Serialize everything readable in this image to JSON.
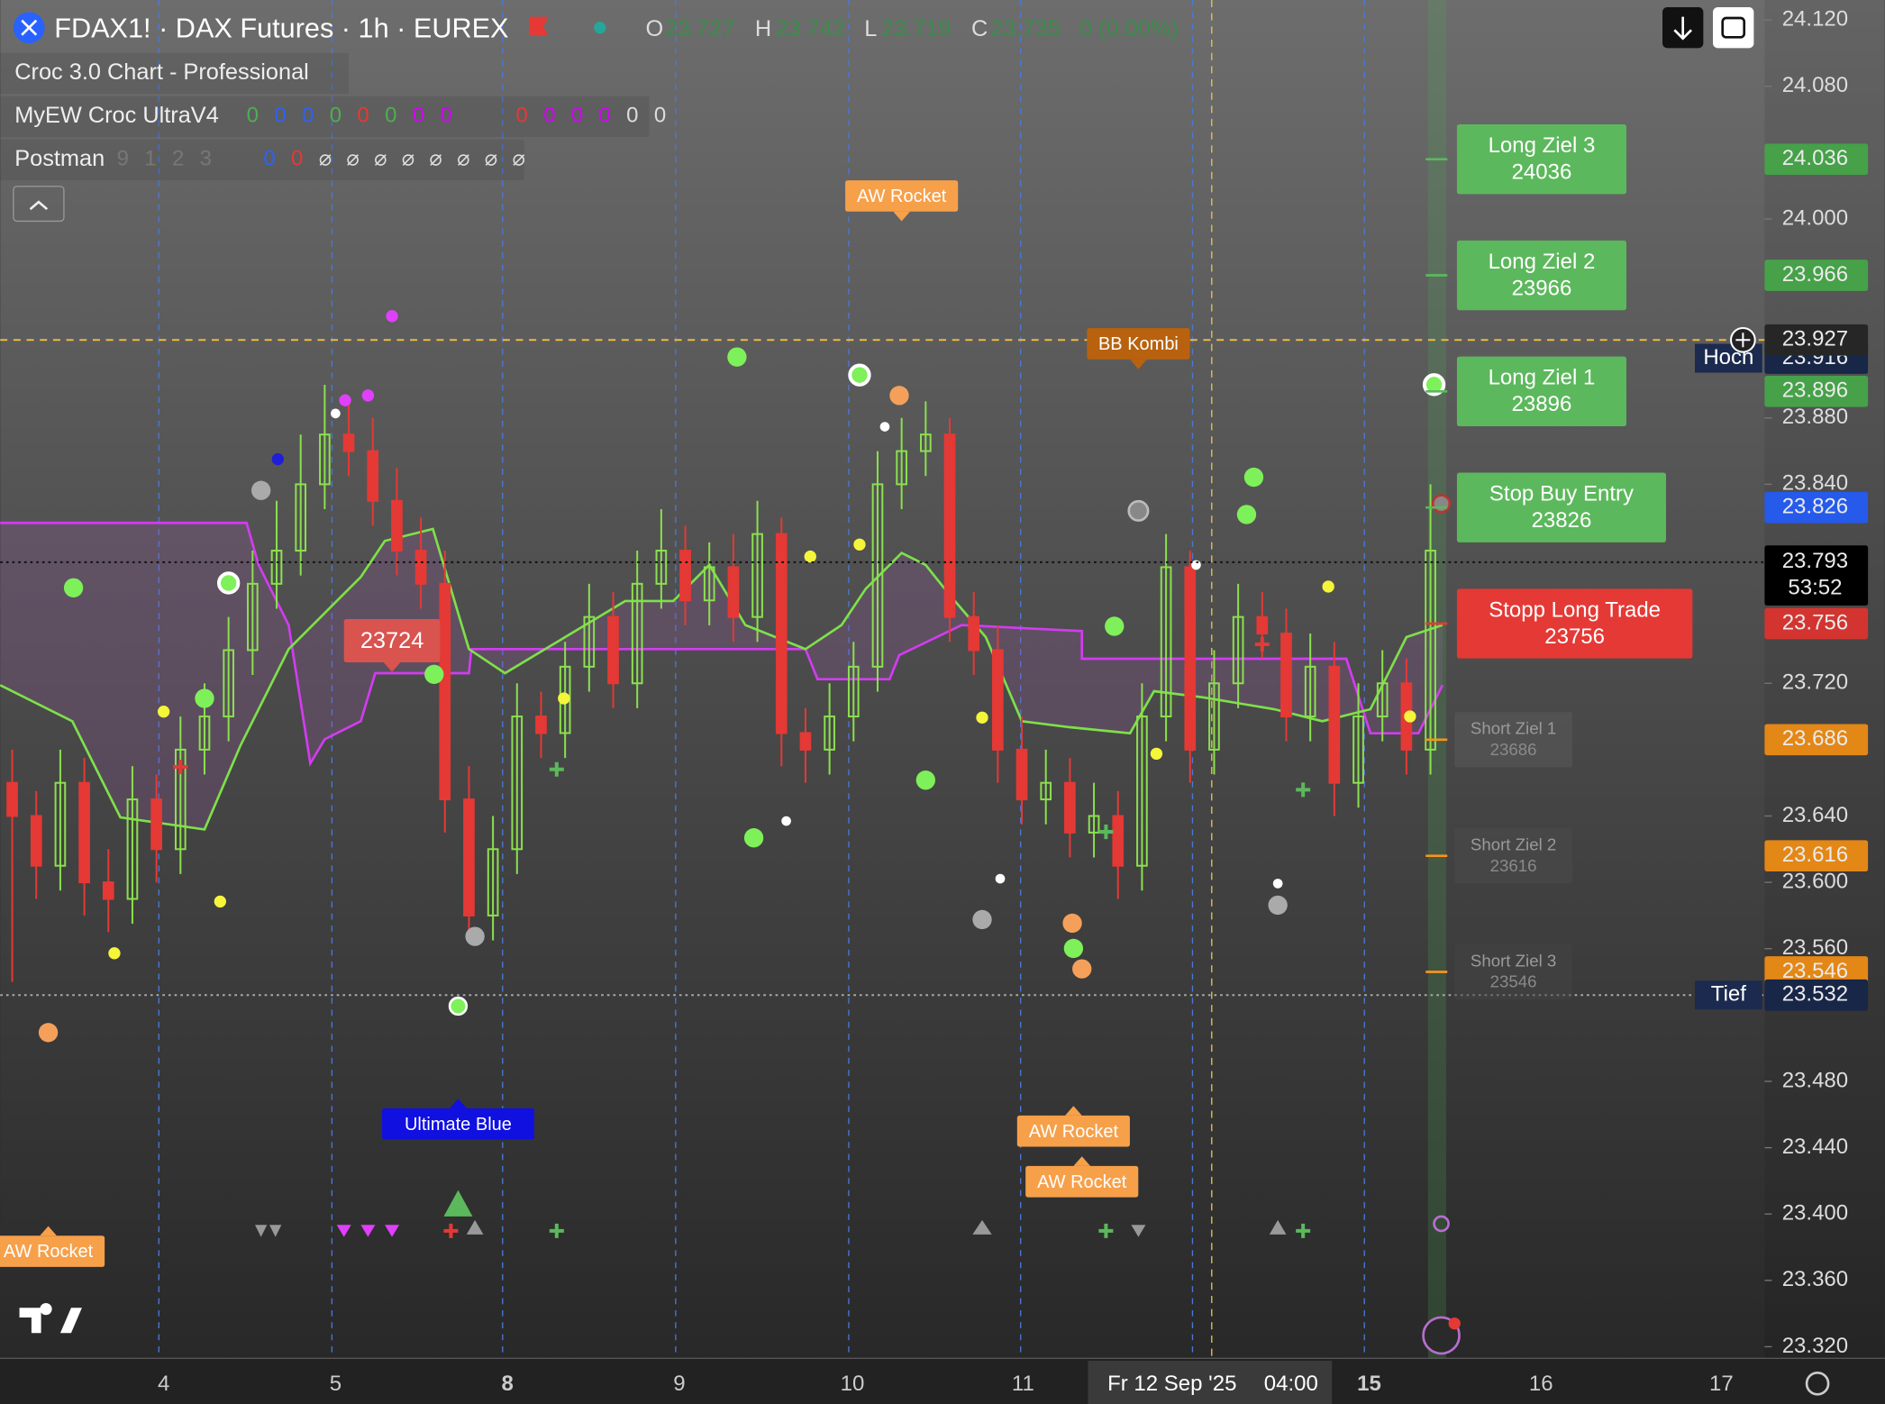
{
  "header": {
    "symbol": "FDAX1! · DAX Futures · 1h · EUREX",
    "o_label": "O",
    "o": "23.727",
    "h_label": "H",
    "h": "23.742",
    "l_label": "L",
    "l": "23.719",
    "c_label": "C",
    "c": "23.735",
    "change": "0 (0.00%)"
  },
  "indicators": [
    {
      "name": "Croc 3.0 Chart - Professional"
    },
    {
      "name": "MyEW Croc UltraV4",
      "values": [
        "0",
        "0",
        "0",
        "0",
        "0",
        "0",
        "0",
        "0",
        "0",
        "0",
        "0",
        "0",
        "0",
        "0"
      ],
      "colors": [
        "#4caf50",
        "#2962ff",
        "#2962ff",
        "#4caf50",
        "#e53935",
        "#4caf50",
        "#d500f9",
        "#d500f9",
        "#e53935",
        "#d500f9",
        "#d500f9",
        "#d500f9",
        "#dddddd",
        "#dddddd"
      ]
    },
    {
      "name": "Postman",
      "values": [
        "9",
        "1",
        "2",
        "3",
        "0",
        "0",
        "⌀",
        "⌀",
        "⌀",
        "⌀",
        "⌀",
        "⌀",
        "⌀",
        "⌀"
      ],
      "colors": [
        "#777777",
        "#777777",
        "#777777",
        "#777777",
        "#2962ff",
        "#e53935",
        "#dddddd",
        "#dddddd",
        "#dddddd",
        "#dddddd",
        "#dddddd",
        "#dddddd",
        "#dddddd",
        "#dddddd"
      ]
    }
  ],
  "chart_data": {
    "type": "candlestick",
    "up_color": "#8be04e",
    "down_color": "#e53935",
    "open": [
      23660,
      23640,
      23610,
      23660,
      23600,
      23590,
      23650,
      23620,
      23680,
      23700,
      23740,
      23780,
      23800,
      23840,
      23870,
      23860,
      23830,
      23800,
      23780,
      23650,
      23580,
      23620,
      23700,
      23690,
      23730,
      23760,
      23720,
      23780,
      23800,
      23770,
      23790,
      23760,
      23810,
      23690,
      23680,
      23700,
      23730,
      23840,
      23860,
      23870,
      23760,
      23740,
      23680,
      23650,
      23660,
      23630,
      23640,
      23610,
      23700,
      23790,
      23680,
      23720,
      23760,
      23750,
      23700,
      23730,
      23660,
      23700,
      23720,
      23680
    ],
    "high": [
      23680,
      23655,
      23680,
      23675,
      23620,
      23670,
      23665,
      23700,
      23720,
      23760,
      23800,
      23830,
      23870,
      23900,
      23890,
      23880,
      23850,
      23820,
      23800,
      23670,
      23640,
      23720,
      23715,
      23745,
      23780,
      23775,
      23800,
      23825,
      23815,
      23805,
      23810,
      23830,
      23820,
      23705,
      23720,
      23745,
      23860,
      23880,
      23890,
      23880,
      23775,
      23755,
      23700,
      23680,
      23675,
      23660,
      23655,
      23720,
      23810,
      23800,
      23740,
      23780,
      23775,
      23765,
      23750,
      23745,
      23720,
      23740,
      23735,
      23840
    ],
    "low": [
      23540,
      23590,
      23595,
      23580,
      23570,
      23575,
      23600,
      23605,
      23665,
      23685,
      23725,
      23765,
      23785,
      23825,
      23845,
      23815,
      23785,
      23765,
      23630,
      23565,
      23565,
      23605,
      23675,
      23675,
      23715,
      23705,
      23705,
      23765,
      23755,
      23755,
      23745,
      23745,
      23670,
      23660,
      23665,
      23685,
      23715,
      23825,
      23845,
      23745,
      23725,
      23660,
      23635,
      23635,
      23615,
      23615,
      23590,
      23595,
      23685,
      23660,
      23665,
      23705,
      23735,
      23685,
      23685,
      23640,
      23645,
      23685,
      23665,
      23665
    ],
    "close": [
      23640,
      23610,
      23660,
      23600,
      23590,
      23650,
      23620,
      23680,
      23700,
      23740,
      23780,
      23800,
      23840,
      23870,
      23860,
      23830,
      23800,
      23780,
      23650,
      23580,
      23620,
      23700,
      23690,
      23730,
      23760,
      23720,
      23780,
      23800,
      23770,
      23790,
      23760,
      23810,
      23690,
      23680,
      23700,
      23730,
      23840,
      23860,
      23870,
      23760,
      23740,
      23680,
      23650,
      23660,
      23630,
      23640,
      23610,
      23700,
      23790,
      23680,
      23720,
      23760,
      23750,
      23700,
      23730,
      23660,
      23700,
      23720,
      23680,
      23800
    ],
    "ylim": [
      23313,
      24132
    ],
    "yticks": [
      {
        "value": 24120,
        "label": "24.120"
      },
      {
        "value": 24080,
        "label": "24.080"
      },
      {
        "value": 24000,
        "label": "24.000"
      },
      {
        "value": 23880,
        "label": "23.880"
      },
      {
        "value": 23840,
        "label": "23.840"
      },
      {
        "value": 23720,
        "label": "23.720"
      },
      {
        "value": 23640,
        "label": "23.640"
      },
      {
        "value": 23600,
        "label": "23.600"
      },
      {
        "value": 23560,
        "label": "23.560"
      },
      {
        "value": 23480,
        "label": "23.480"
      },
      {
        "value": 23440,
        "label": "23.440"
      },
      {
        "value": 23400,
        "label": "23.400"
      },
      {
        "value": 23360,
        "label": "23.360"
      },
      {
        "value": 23320,
        "label": "23.320"
      }
    ],
    "categories": [
      "4",
      "5",
      "8",
      "9",
      "10",
      "11",
      "Fr 12 Sep '25",
      "15",
      "16",
      "17"
    ],
    "crosshair_time": "04:00",
    "price_labels": [
      {
        "value": 24036,
        "label": "24.036",
        "color": "#4caf50"
      },
      {
        "value": 23966,
        "label": "23.966",
        "color": "#4caf50"
      },
      {
        "value": 23916,
        "label": "23.916",
        "color": "#1b2a4e",
        "tag": "Hoch"
      },
      {
        "value": 23927,
        "label": "23.927",
        "color": "#2a2a2a"
      },
      {
        "value": 23896,
        "label": "23.896",
        "color": "#4caf50"
      },
      {
        "value": 23826,
        "label": "23.826",
        "color": "#2962ff"
      },
      {
        "value": 23793,
        "label": "23.793",
        "color": "#000000",
        "countdown": "53:52"
      },
      {
        "value": 23756,
        "label": "23.756",
        "color": "#e53935"
      },
      {
        "value": 23686,
        "label": "23.686",
        "color": "#f7931a"
      },
      {
        "value": 23616,
        "label": "23.616",
        "color": "#f7931a"
      },
      {
        "value": 23546,
        "label": "23.546",
        "color": "#f7931a"
      },
      {
        "value": 23532,
        "label": "23.532",
        "color": "#1b2a4e",
        "tag": "Tief"
      }
    ],
    "targets": [
      {
        "name": "Long Ziel 3",
        "value": 24036,
        "color": "#5cb85c"
      },
      {
        "name": "Long Ziel 2",
        "value": 23966,
        "color": "#5cb85c"
      },
      {
        "name": "Long Ziel 1",
        "value": 23896,
        "color": "#5cb85c"
      },
      {
        "name": "Stop Buy Entry",
        "value": 23826,
        "color": "#5cb85c"
      },
      {
        "name": "Stopp Long Trade",
        "value": 23756,
        "color": "#e53935"
      },
      {
        "name": "Short Ziel 1",
        "value": 23686,
        "color": "#5a5a5a"
      },
      {
        "name": "Short Ziel 2",
        "value": 23616,
        "color": "#4a4a4a"
      },
      {
        "name": "Short Ziel 3",
        "value": 23546,
        "color": "#444444"
      }
    ],
    "signals": [
      {
        "text": "AW Rocket",
        "color": "#f7a04a"
      },
      {
        "text": "BB Kombi",
        "color": "#b8620f"
      },
      {
        "text": "23724",
        "color": "#d9534f"
      },
      {
        "text": "Ultimate Blue",
        "color": "#1010e0"
      },
      {
        "text": "AW Rocket",
        "color": "#f7a04a"
      },
      {
        "text": "AW Rocket",
        "color": "#f7a04a"
      },
      {
        "text": "AW Rocket",
        "color": "#f7a04a"
      }
    ]
  }
}
